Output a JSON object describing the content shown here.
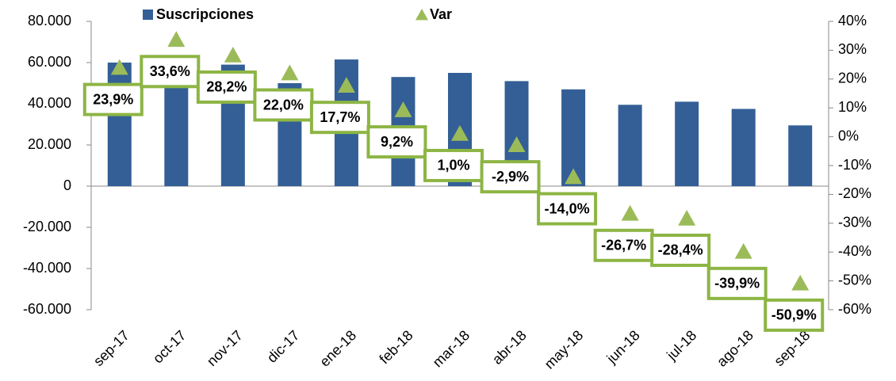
{
  "chart_data": {
    "type": "bar_line",
    "categories": [
      "sep-17",
      "oct-17",
      "nov-17",
      "dic-17",
      "ene-18",
      "feb-18",
      "mar-18",
      "abr-18",
      "may-18",
      "jun-18",
      "jul-18",
      "ago-18",
      "sep-18"
    ],
    "series": [
      {
        "name": "Suscripciones",
        "type": "bar",
        "color": "#335f96",
        "values": [
          60000,
          60000,
          59000,
          50000,
          61500,
          53000,
          55000,
          51000,
          47000,
          39500,
          41000,
          37500,
          29500
        ]
      },
      {
        "name": "Var",
        "type": "marker",
        "axis": "y2",
        "color": "#9bbb59",
        "values": [
          23.9,
          33.6,
          28.2,
          22.0,
          17.7,
          9.2,
          1.0,
          -2.9,
          -14.0,
          -26.7,
          -28.4,
          -39.9,
          -50.9
        ],
        "value_labels": [
          "23,9%",
          "33,6%",
          "28,2%",
          "22,0%",
          "17,7%",
          "9,2%",
          "1,0%",
          "-2,9%",
          "-14,0%",
          "-26,7%",
          "-28,4%",
          "-39,9%",
          "-50,9%"
        ]
      }
    ],
    "ylim": [
      -60000,
      80000
    ],
    "yticks": [
      {
        "value": -60000,
        "label": "-60.000"
      },
      {
        "value": -40000,
        "label": "-40.000"
      },
      {
        "value": -20000,
        "label": "-20.000"
      },
      0,
      {
        "value": 20000,
        "label": "20.000"
      },
      {
        "value": 40000,
        "label": "40.000"
      },
      {
        "value": 60000,
        "label": "60.000"
      },
      {
        "value": 80000,
        "label": "80.000"
      }
    ],
    "y2lim": [
      -60,
      40
    ],
    "y2ticks": [
      {
        "value": -60,
        "label": "-60%"
      },
      {
        "value": -50,
        "label": "-50%"
      },
      {
        "value": -40,
        "label": "-40%"
      },
      {
        "value": -30,
        "label": "-30%"
      },
      {
        "value": -20,
        "label": "-20%"
      },
      {
        "value": -10,
        "label": "-10%"
      },
      {
        "value": 0,
        "label": "0%"
      },
      {
        "value": 10,
        "label": "10%"
      },
      {
        "value": 20,
        "label": "20%"
      },
      {
        "value": 30,
        "label": "30%"
      },
      {
        "value": 40,
        "label": "40%"
      }
    ],
    "legend": "top"
  }
}
